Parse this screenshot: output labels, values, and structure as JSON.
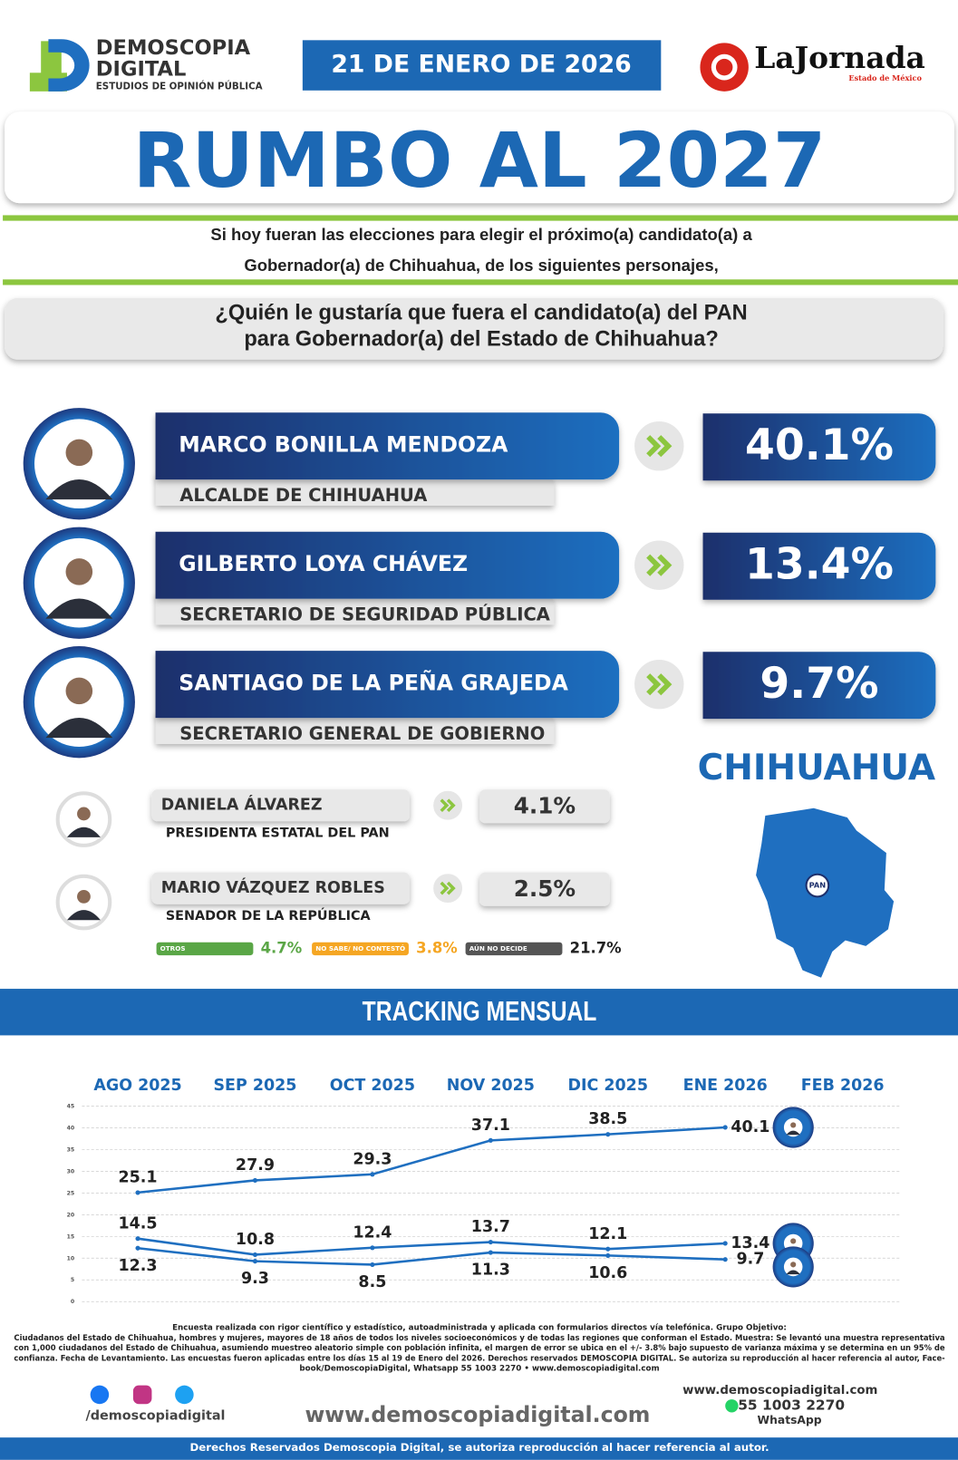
{
  "header": {
    "brand": [
      "DEMOSCOPIA",
      "DIGITAL"
    ],
    "brand_tagline": "ESTUDIOS DE OPINIÓN PÚBLICA",
    "date": "21 DE ENERO DE 2026",
    "partner": "LaJornada",
    "partner_edition": "Estado de México",
    "title": "RUMBO AL 2027"
  },
  "intro": [
    "Si hoy fueran las elecciones para elegir el próximo(a) candidato(a) a",
    "Gobernador(a) de Chihuahua, de los siguientes personajes,"
  ],
  "question": [
    "¿Quién le gustaría que fuera el candidato(a) del PAN",
    "para Gobernador(a) del Estado de Chihuahua?"
  ],
  "candidates": [
    {
      "name": "MARCO BONILLA MENDOZA",
      "role": "ALCALDE DE CHIHUAHUA",
      "result": "40.1%"
    },
    {
      "name": "GILBERTO LOYA CHÁVEZ",
      "role": "SECRETARIO DE SEGURIDAD PÚBLICA",
      "result": "13.4%"
    },
    {
      "name": "SANTIAGO DE LA PEÑA GRAJEDA",
      "role": "SECRETARIO GENERAL DE GOBIERNO",
      "result": "9.7%"
    },
    {
      "name": "DANIELA ÁLVAREZ",
      "role": "PRESIDENTA ESTATAL DEL PAN",
      "result": "4.1%"
    },
    {
      "name": "MARIO VÁZQUEZ ROBLES",
      "role": "SENADOR DE LA REPÚBLICA",
      "result": "2.5%"
    }
  ],
  "others": [
    {
      "label": "OTROS",
      "result": "4.7%",
      "color": "#5aa646"
    },
    {
      "label": "NO SABE/ NO CONTESTÓ",
      "result": "3.8%",
      "color": "#f5a623"
    },
    {
      "label": "AÚN NO DECIDE",
      "result": "21.7%",
      "color": "#555555"
    }
  ],
  "state": {
    "name": "CHIHUAHUA",
    "party": "PAN"
  },
  "tracking_title": "TRACKING MENSUAL",
  "chart_data": {
    "type": "line",
    "categories": [
      "AGO 2025",
      "SEP 2025",
      "OCT 2025",
      "NOV 2025",
      "DIC 2025",
      "ENE 2026",
      "FEB 2026"
    ],
    "series": [
      {
        "color": "#1f6fc0",
        "values": [
          25.1,
          27.9,
          29.3,
          37.1,
          38.5,
          40.1,
          null
        ]
      },
      {
        "color": "#1f6fc0",
        "values": [
          14.5,
          10.8,
          12.4,
          13.7,
          12.1,
          13.4,
          null
        ]
      },
      {
        "color": "#1f6fc0",
        "values": [
          12.3,
          9.3,
          8.5,
          11.3,
          10.6,
          9.7,
          null
        ]
      }
    ],
    "ylim": [
      0,
      45
    ],
    "yticks": [
      0,
      5,
      10,
      15,
      20,
      25,
      30,
      35,
      40,
      45
    ],
    "grid": true
  },
  "footer": {
    "methodology": [
      "Encuesta realizada con rigor científico y estadístico, autoadministrada y aplicada con formularios directos vía telefónica. Grupo Objetivo:",
      "Ciudadanos del Estado de Chihuahua, hombres y mujeres, mayores de 18 años de todos los niveles socioeconómicos y de todas las regiones que conforman el Estado. Muestra: Se levantó una muestra representativa",
      "con 1,000 ciudadanos del Estado de Chihuahua, asumiendo muestreo aleatorio simple con población infinita, el margen de error se ubica en el +/- 3.8% bajo supuesto de varianza máxima y se determina en un 95% de",
      "confianza. Fecha de Levantamiento. Las encuestas fueron aplicadas entre los días 15 al 19 de Enero del 2026. Derechos reservados DEMOSCOPIA DIGITAL. Se autoriza su reproducción al hacer referencia al autor, Face-",
      "book/DemoscopiaDigital, Whatsapp 55 1003 2270 • www.demoscopiadigital.com"
    ],
    "social_handle": "/demoscopiadigital",
    "website": "www.demoscopiadigital.com",
    "website_small": "www.demoscopiadigital.com",
    "phone": "55 1003 2270",
    "phone_app": "WhatsApp",
    "copyright": "Derechos Reservados Demoscopia Digital, se autoriza reproducción al hacer referencia al autor."
  }
}
